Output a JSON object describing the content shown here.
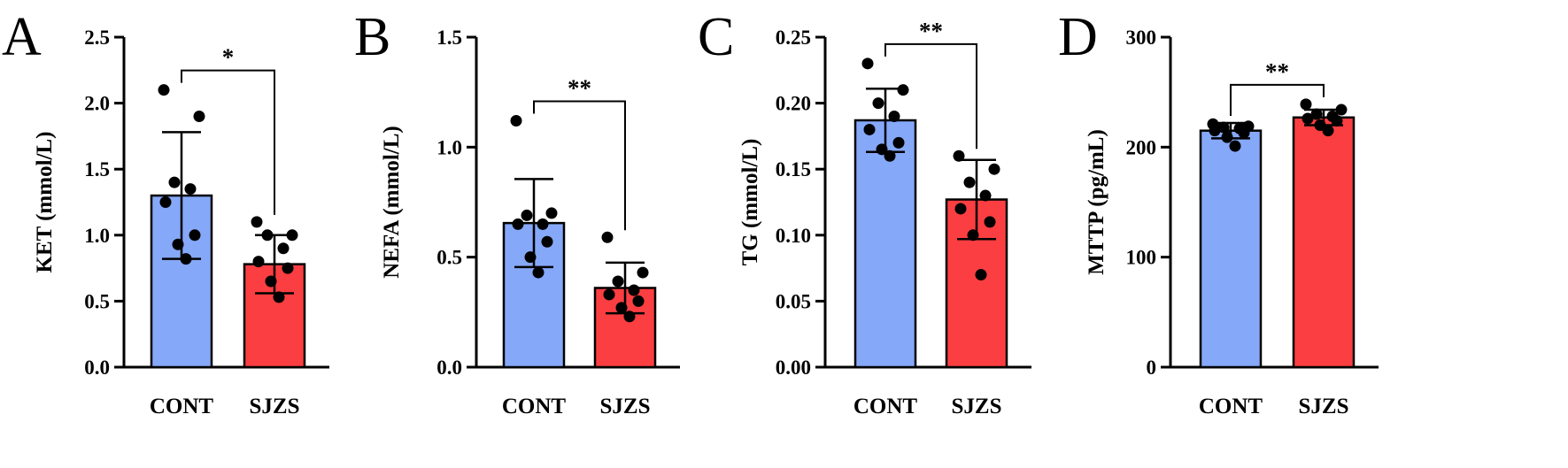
{
  "colors": {
    "cont": "#86a8f9",
    "sjzs": "#fb3e41",
    "stroke": "#000000"
  },
  "chart_data": [
    {
      "type": "bar",
      "panel": "A",
      "ylabel": "KET (mmol/L)",
      "categories": [
        "CONT",
        "SJZS"
      ],
      "ylim": [
        0,
        2.5
      ],
      "yticks": [
        0,
        0.5,
        1.0,
        1.5,
        2.0,
        2.5
      ],
      "tick_labels": [
        "0.0",
        "0.5",
        "1.0",
        "1.5",
        "2.0",
        "2.5"
      ],
      "means": [
        1.3,
        0.78
      ],
      "sd": [
        0.48,
        0.22
      ],
      "points": [
        [
          2.1,
          1.9,
          1.4,
          1.35,
          1.25,
          1.0,
          0.93,
          0.82
        ],
        [
          1.1,
          1.0,
          1.0,
          0.9,
          0.8,
          0.75,
          0.65,
          0.53
        ]
      ],
      "significance": "*"
    },
    {
      "type": "bar",
      "panel": "B",
      "ylabel": "NEFA (mmol/L)",
      "categories": [
        "CONT",
        "SJZS"
      ],
      "ylim": [
        0,
        1.5
      ],
      "yticks": [
        0,
        0.5,
        1.0,
        1.5
      ],
      "tick_labels": [
        "0.0",
        "0.5",
        "1.0",
        "1.5"
      ],
      "means": [
        0.655,
        0.36
      ],
      "sd": [
        0.2,
        0.115
      ],
      "points": [
        [
          1.12,
          0.7,
          0.69,
          0.65,
          0.65,
          0.57,
          0.5,
          0.43
        ],
        [
          0.59,
          0.43,
          0.39,
          0.35,
          0.33,
          0.3,
          0.27,
          0.23
        ]
      ],
      "significance": "**"
    },
    {
      "type": "bar",
      "panel": "C",
      "ylabel": "TG (mmol/L)",
      "categories": [
        "CONT",
        "SJZS"
      ],
      "ylim": [
        0,
        0.25
      ],
      "yticks": [
        0,
        0.05,
        0.1,
        0.15,
        0.2,
        0.25
      ],
      "tick_labels": [
        "0.00",
        "0.05",
        "0.10",
        "0.15",
        "0.20",
        "0.25"
      ],
      "means": [
        0.187,
        0.127
      ],
      "sd": [
        0.024,
        0.03
      ],
      "points": [
        [
          0.23,
          0.21,
          0.2,
          0.19,
          0.18,
          0.17,
          0.165,
          0.16
        ],
        [
          0.16,
          0.15,
          0.14,
          0.13,
          0.12,
          0.11,
          0.1,
          0.07
        ]
      ],
      "significance": "**"
    },
    {
      "type": "bar",
      "panel": "D",
      "ylabel": "MTTP (pg/mL)",
      "categories": [
        "CONT",
        "SJZS"
      ],
      "ylim": [
        0,
        300
      ],
      "yticks": [
        0,
        100,
        200,
        300
      ],
      "tick_labels": [
        "0",
        "100",
        "200",
        "300"
      ],
      "means": [
        215,
        227
      ],
      "sd": [
        7,
        7
      ],
      "points": [
        [
          221,
          219,
          218,
          217,
          215,
          213,
          209,
          201
        ],
        [
          239,
          234,
          230,
          228,
          226,
          224,
          220,
          215
        ]
      ],
      "significance": "**"
    }
  ]
}
